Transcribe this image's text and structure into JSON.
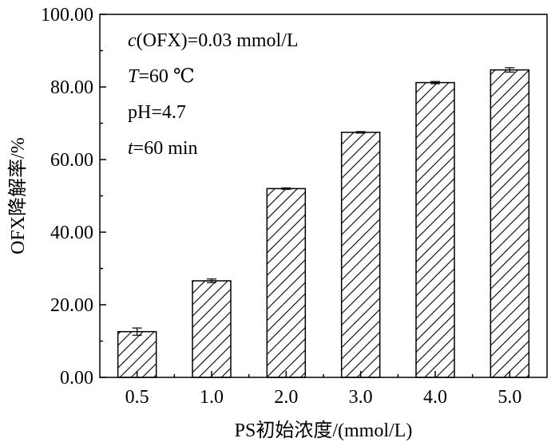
{
  "chart_data": {
    "type": "bar",
    "categories": [
      "0.5",
      "1.0",
      "2.0",
      "3.0",
      "4.0",
      "5.0"
    ],
    "values": [
      12.6,
      26.6,
      52.0,
      67.5,
      81.2,
      84.7
    ],
    "errors": [
      1.0,
      0.5,
      0.2,
      0.2,
      0.3,
      0.6
    ],
    "title": "",
    "xlabel": "PS初始浓度/(mmol/L)",
    "ylabel": "OFX降解率/%",
    "ylim": [
      0,
      100
    ],
    "yticks": [
      "0.00",
      "20.00",
      "40.00",
      "60.00",
      "80.00",
      "100.00"
    ],
    "grid": false,
    "legend": "none",
    "bar_fill": "diagonal hatch",
    "bar_color": "#000000",
    "annotations": [
      {
        "italic": "c",
        "text": "(OFX)=0.03 mmol/L"
      },
      {
        "italic": "T",
        "text": "=60 ℃"
      },
      {
        "italic": "",
        "text": "pH=4.7"
      },
      {
        "italic": "t",
        "text": "=60 min"
      }
    ]
  }
}
